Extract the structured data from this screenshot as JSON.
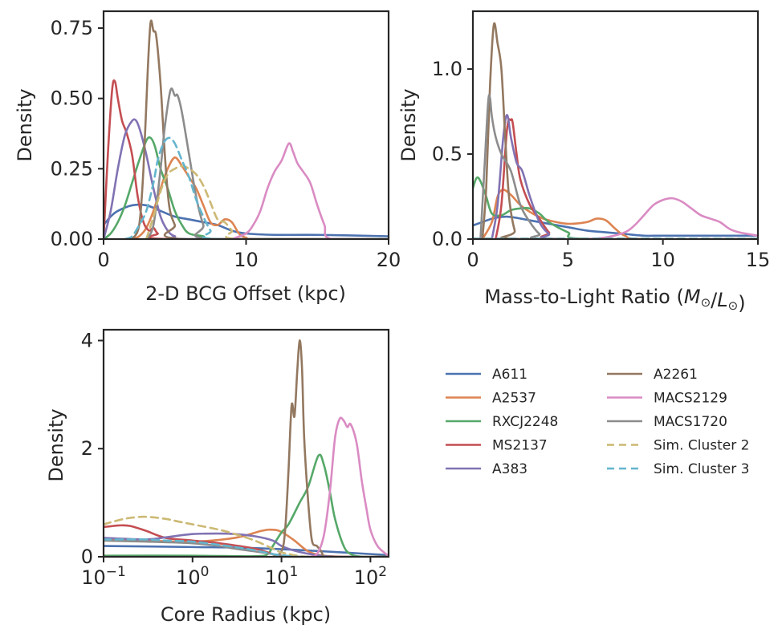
{
  "legend": {
    "columns": [
      [
        "A611",
        "A2537",
        "RXCJ2248",
        "MS2137",
        "A383"
      ],
      [
        "A2261",
        "MACS2129",
        "MACS1720",
        "Sim. Cluster 2",
        "Sim. Cluster 3"
      ]
    ]
  },
  "colors": {
    "A611": "#4c72b0",
    "A2537": "#dd8452",
    "RXCJ2248": "#55a868",
    "MS2137": "#c44e52",
    "A383": "#8172b3",
    "A2261": "#937860",
    "MACS2129": "#da8bc3",
    "MACS1720": "#8c8c8c",
    "Sim. Cluster 2": "#ccb974",
    "Sim. Cluster 3": "#64b5cd"
  },
  "chart_data": [
    {
      "type": "line",
      "id": "bcg",
      "xlabel": "2-D BCG Offset (kpc)",
      "ylabel": "Density",
      "xscale": "linear",
      "xlim": [
        0,
        20
      ],
      "ylim": [
        0,
        0.81
      ],
      "xticks": [
        0,
        10,
        20
      ],
      "xtick_labels": [
        "0",
        "10",
        "20"
      ],
      "yticks": [
        0,
        0.25,
        0.5,
        0.75
      ],
      "ytick_labels": [
        "0.00",
        "0.25",
        "0.50",
        "0.75"
      ],
      "series": [
        {
          "name": "A611",
          "x": [
            0,
            0.5,
            1,
            2,
            3,
            4,
            5,
            6,
            7,
            8,
            9,
            10,
            12,
            15,
            20
          ],
          "y": [
            0.05,
            0.08,
            0.1,
            0.12,
            0.12,
            0.1,
            0.08,
            0.07,
            0.06,
            0.05,
            0.03,
            0.02,
            0.015,
            0.015,
            0.01
          ]
        },
        {
          "name": "A2537",
          "x": [
            2,
            2.5,
            3,
            3.5,
            4,
            4.5,
            5,
            5.5,
            6,
            6.5,
            7,
            7.5,
            8,
            8.5,
            9,
            9.5,
            10,
            11,
            20
          ],
          "y": [
            0,
            0.01,
            0.04,
            0.1,
            0.18,
            0.25,
            0.29,
            0.26,
            0.22,
            0.18,
            0.12,
            0.06,
            0.05,
            0.07,
            0.06,
            0.02,
            0.005,
            0,
            0
          ]
        },
        {
          "name": "RXCJ2248",
          "x": [
            0,
            0.5,
            1,
            1.5,
            2,
            2.5,
            3,
            3.3,
            3.6,
            4,
            4.5,
            5,
            5.5,
            6,
            7,
            8,
            20
          ],
          "y": [
            0,
            0.02,
            0.06,
            0.12,
            0.2,
            0.28,
            0.35,
            0.36,
            0.33,
            0.25,
            0.18,
            0.1,
            0.05,
            0.02,
            0.01,
            0,
            0
          ]
        },
        {
          "name": "MS2137",
          "x": [
            0,
            0.3,
            0.6,
            0.8,
            1.0,
            1.3,
            1.6,
            2.0,
            2.4,
            2.8,
            3.2,
            3.5,
            3.8,
            4.5,
            20
          ],
          "y": [
            0,
            0.3,
            0.53,
            0.56,
            0.5,
            0.42,
            0.38,
            0.3,
            0.15,
            0.06,
            0.03,
            0.04,
            0.02,
            0,
            0
          ]
        },
        {
          "name": "A383",
          "x": [
            0,
            0.5,
            1,
            1.5,
            2,
            2.3,
            2.6,
            3,
            3.5,
            4,
            4.5,
            5,
            6,
            20
          ],
          "y": [
            0,
            0.1,
            0.25,
            0.37,
            0.42,
            0.42,
            0.38,
            0.3,
            0.18,
            0.08,
            0.03,
            0.01,
            0,
            0
          ]
        },
        {
          "name": "A2261",
          "x": [
            2,
            2.5,
            2.8,
            3.1,
            3.3,
            3.5,
            3.7,
            4.0,
            4.3,
            4.6,
            5.0,
            5.5,
            20
          ],
          "y": [
            0,
            0.05,
            0.25,
            0.6,
            0.77,
            0.74,
            0.72,
            0.55,
            0.3,
            0.12,
            0.05,
            0,
            0
          ]
        },
        {
          "name": "MACS2129",
          "x": [
            9,
            10,
            10.5,
            11,
            11.5,
            12,
            12.5,
            13,
            13.3,
            13.6,
            14,
            14.5,
            15,
            15.5,
            16,
            20
          ],
          "y": [
            0,
            0.02,
            0.05,
            0.1,
            0.18,
            0.24,
            0.28,
            0.34,
            0.31,
            0.27,
            0.24,
            0.2,
            0.12,
            0.05,
            0,
            0
          ]
        },
        {
          "name": "MACS1720",
          "x": [
            3,
            3.5,
            4,
            4.3,
            4.7,
            5,
            5.2,
            5.5,
            6,
            6.5,
            7,
            7.5,
            20
          ],
          "y": [
            0,
            0.05,
            0.25,
            0.4,
            0.53,
            0.51,
            0.51,
            0.45,
            0.3,
            0.15,
            0.05,
            0,
            0
          ]
        },
        {
          "name": "Sim. Cluster 2",
          "x": [
            3,
            3.5,
            4,
            4.5,
            5,
            5.5,
            6,
            6.5,
            7,
            7.5,
            8,
            8.5,
            9,
            9.5,
            20
          ],
          "y": [
            0,
            0.08,
            0.17,
            0.23,
            0.25,
            0.26,
            0.25,
            0.23,
            0.19,
            0.13,
            0.07,
            0.06,
            0.03,
            0,
            0
          ]
        },
        {
          "name": "Sim. Cluster 3",
          "x": [
            1.5,
            2,
            2.5,
            3,
            3.5,
            3.8,
            4.2,
            4.6,
            5,
            5.5,
            6,
            6.5,
            7,
            7.5,
            8,
            20
          ],
          "y": [
            0,
            0.01,
            0.05,
            0.1,
            0.2,
            0.28,
            0.34,
            0.36,
            0.34,
            0.28,
            0.22,
            0.14,
            0.08,
            0.03,
            0,
            0
          ]
        }
      ]
    },
    {
      "type": "line",
      "id": "ml",
      "xlabel": "Mass-to-Light Ratio (M⊙/L⊙)",
      "ylabel": "Density",
      "xscale": "linear",
      "xlim": [
        0,
        15
      ],
      "ylim": [
        0,
        1.34
      ],
      "xticks": [
        0,
        5,
        10,
        15
      ],
      "xtick_labels": [
        "0",
        "5",
        "10",
        "15"
      ],
      "yticks": [
        0,
        0.5,
        1.0
      ],
      "ytick_labels": [
        "0.0",
        "0.5",
        "1.0"
      ],
      "series": [
        {
          "name": "A611",
          "x": [
            0,
            0.5,
            1,
            1.5,
            2,
            3,
            4,
            5,
            6,
            7,
            8,
            9,
            10,
            12,
            15
          ],
          "y": [
            0.08,
            0.1,
            0.12,
            0.13,
            0.13,
            0.11,
            0.09,
            0.07,
            0.05,
            0.04,
            0.03,
            0.02,
            0.02,
            0.02,
            0.02
          ]
        },
        {
          "name": "A2537",
          "x": [
            0.5,
            1,
            1.3,
            1.6,
            2,
            2.5,
            3,
            3.5,
            4,
            5,
            6,
            6.5,
            7,
            7.5,
            8,
            9,
            15
          ],
          "y": [
            0,
            0.1,
            0.25,
            0.29,
            0.26,
            0.2,
            0.16,
            0.13,
            0.11,
            0.09,
            0.1,
            0.12,
            0.11,
            0.06,
            0.02,
            0,
            0
          ]
        },
        {
          "name": "RXCJ2248",
          "x": [
            0,
            0.2,
            0.4,
            0.7,
            1,
            1.5,
            2,
            2.5,
            3,
            3.5,
            4,
            5,
            6,
            15
          ],
          "y": [
            0.3,
            0.36,
            0.34,
            0.25,
            0.15,
            0.14,
            0.17,
            0.18,
            0.18,
            0.15,
            0.1,
            0.04,
            0,
            0
          ]
        },
        {
          "name": "MS2137",
          "x": [
            1.2,
            1.5,
            1.8,
            2.0,
            2.1,
            2.3,
            2.5,
            3,
            3.5,
            4,
            4.5,
            15
          ],
          "y": [
            0,
            0.2,
            0.65,
            0.7,
            0.68,
            0.5,
            0.35,
            0.2,
            0.12,
            0.04,
            0,
            0
          ]
        },
        {
          "name": "A383",
          "x": [
            1.0,
            1.3,
            1.6,
            1.8,
            2.0,
            2.3,
            2.6,
            3,
            3.5,
            4,
            4.5,
            15
          ],
          "y": [
            0,
            0.2,
            0.6,
            0.73,
            0.6,
            0.45,
            0.4,
            0.25,
            0.1,
            0.03,
            0,
            0
          ]
        },
        {
          "name": "A2261",
          "x": [
            0.5,
            0.7,
            0.9,
            1.1,
            1.3,
            1.5,
            1.7,
            1.9,
            2.2,
            2.5,
            15
          ],
          "y": [
            0,
            0.3,
            0.9,
            1.26,
            1.15,
            1.0,
            0.6,
            0.25,
            0.05,
            0,
            0
          ]
        },
        {
          "name": "MACS2129",
          "x": [
            6,
            7,
            8,
            8.5,
            9,
            9.5,
            10,
            10.5,
            11,
            11.5,
            12,
            12.5,
            13,
            13.5,
            14,
            15
          ],
          "y": [
            0,
            0.01,
            0.04,
            0.08,
            0.14,
            0.2,
            0.23,
            0.24,
            0.22,
            0.18,
            0.14,
            0.12,
            0.1,
            0.06,
            0.04,
            0.02
          ]
        },
        {
          "name": "MACS1720",
          "x": [
            0.4,
            0.6,
            0.8,
            0.9,
            1.0,
            1.2,
            1.5,
            2.0,
            2.5,
            3,
            3.5,
            4,
            15
          ],
          "y": [
            0,
            0.4,
            0.8,
            0.83,
            0.72,
            0.6,
            0.5,
            0.4,
            0.2,
            0.1,
            0.03,
            0,
            0
          ]
        },
        {
          "name": "Sim. Cluster 2",
          "x": [
            0,
            15
          ],
          "y": [
            0.002,
            0.002
          ]
        },
        {
          "name": "Sim. Cluster 3",
          "x": [
            0,
            15
          ],
          "y": [
            0.002,
            0.002
          ]
        }
      ]
    },
    {
      "type": "line",
      "id": "core",
      "xlabel": "Core Radius (kpc)",
      "ylabel": "Density",
      "xscale": "log",
      "xlim": [
        0.1,
        160
      ],
      "ylim": [
        0,
        4.2
      ],
      "xticks": [
        0.1,
        1,
        10,
        100
      ],
      "xtick_labels": [
        "10",
        "10",
        "10",
        "10"
      ],
      "xtick_exponents": [
        "−1",
        "0",
        "1",
        "2"
      ],
      "yticks": [
        0,
        2,
        4
      ],
      "ytick_labels": [
        "0",
        "2",
        "4"
      ],
      "series": [
        {
          "name": "A611",
          "x": [
            0.1,
            1,
            3,
            10,
            30,
            100,
            160
          ],
          "y": [
            0.2,
            0.18,
            0.17,
            0.14,
            0.1,
            0.05,
            0.03
          ]
        },
        {
          "name": "A2537",
          "x": [
            0.1,
            0.3,
            1,
            3,
            6,
            8,
            10,
            14,
            20,
            30,
            60,
            160
          ],
          "y": [
            0.32,
            0.3,
            0.28,
            0.35,
            0.48,
            0.5,
            0.46,
            0.3,
            0.1,
            0.02,
            0,
            0
          ]
        },
        {
          "name": "RXCJ2248",
          "x": [
            0.1,
            1,
            5,
            7,
            8,
            10,
            12,
            16,
            20,
            26,
            30,
            35,
            40,
            50,
            60,
            80,
            160
          ],
          "y": [
            0.02,
            0.02,
            0.01,
            0.05,
            0.2,
            0.45,
            0.6,
            1.0,
            1.3,
            1.87,
            1.7,
            1.2,
            0.7,
            0.2,
            0.05,
            0,
            0
          ]
        },
        {
          "name": "MS2137",
          "x": [
            0.1,
            0.15,
            0.2,
            0.3,
            0.5,
            1,
            2,
            5,
            8,
            10,
            12,
            15,
            20
          ],
          "y": [
            0.55,
            0.58,
            0.57,
            0.48,
            0.35,
            0.3,
            0.25,
            0.15,
            0.05,
            0.02,
            0,
            0,
            0
          ]
        },
        {
          "name": "A383",
          "x": [
            0.1,
            0.3,
            0.5,
            1,
            2,
            3,
            5,
            8,
            10,
            15,
            25,
            40,
            60
          ],
          "y": [
            0.35,
            0.32,
            0.36,
            0.42,
            0.43,
            0.42,
            0.38,
            0.3,
            0.2,
            0.1,
            0.03,
            0,
            0
          ]
        },
        {
          "name": "A2261",
          "x": [
            8,
            10,
            11,
            12,
            13,
            14,
            15,
            16,
            17,
            18,
            20,
            22,
            25,
            28,
            30,
            35
          ],
          "y": [
            0,
            0.1,
            0.5,
            1.6,
            2.8,
            2.6,
            3.4,
            4.0,
            3.5,
            2.2,
            1.0,
            0.3,
            0.2,
            0.1,
            0,
            0
          ]
        },
        {
          "name": "MACS2129",
          "x": [
            20,
            25,
            30,
            35,
            40,
            45,
            50,
            55,
            60,
            70,
            80,
            90,
            100,
            120,
            150,
            160
          ],
          "y": [
            0,
            0.05,
            0.4,
            1.2,
            2.2,
            2.55,
            2.52,
            2.4,
            2.45,
            2.1,
            1.4,
            0.9,
            0.5,
            0.2,
            0.05,
            0
          ]
        },
        {
          "name": "MACS1720",
          "x": [
            0.1,
            0.3,
            1,
            2,
            3,
            5,
            8,
            10,
            15,
            20
          ],
          "y": [
            0.3,
            0.28,
            0.25,
            0.2,
            0.15,
            0.1,
            0.05,
            0.02,
            0,
            0
          ]
        },
        {
          "name": "Sim. Cluster 2",
          "x": [
            0.1,
            0.15,
            0.2,
            0.3,
            0.5,
            0.7,
            1,
            2,
            3,
            5,
            8,
            10,
            15,
            20
          ],
          "y": [
            0.6,
            0.68,
            0.72,
            0.74,
            0.7,
            0.65,
            0.6,
            0.5,
            0.42,
            0.3,
            0.15,
            0.08,
            0.02,
            0
          ]
        },
        {
          "name": "Sim. Cluster 3",
          "x": [
            0.1,
            0.3,
            0.5,
            1,
            2,
            3,
            5,
            8,
            10,
            15,
            20
          ],
          "y": [
            0.32,
            0.32,
            0.3,
            0.28,
            0.22,
            0.18,
            0.12,
            0.05,
            0.03,
            0,
            0
          ]
        }
      ]
    }
  ]
}
